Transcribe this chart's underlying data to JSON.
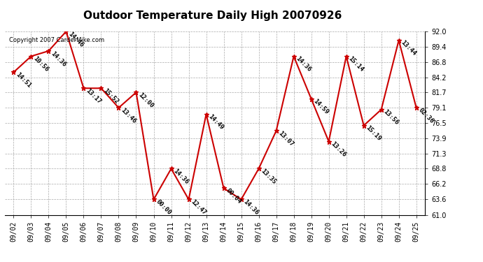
{
  "title": "Outdoor Temperature Daily High 20070926",
  "copyright": "Copyright 2007 CarderMike.com",
  "dates": [
    "09/02",
    "09/03",
    "09/04",
    "09/05",
    "09/06",
    "09/07",
    "09/08",
    "09/09",
    "09/10",
    "09/11",
    "09/12",
    "09/13",
    "09/14",
    "09/15",
    "09/16",
    "09/17",
    "09/18",
    "09/19",
    "09/20",
    "09/21",
    "09/22",
    "09/23",
    "09/24",
    "09/25"
  ],
  "values": [
    85.1,
    87.8,
    88.7,
    92.0,
    82.4,
    82.4,
    79.1,
    81.7,
    63.6,
    68.8,
    63.6,
    78.0,
    65.5,
    63.6,
    68.8,
    75.2,
    87.8,
    80.6,
    73.4,
    87.8,
    76.1,
    78.8,
    90.5,
    79.1
  ],
  "times": [
    "14:51",
    "10:56",
    "14:36",
    "14:46",
    "13:17",
    "15:52",
    "13:46",
    "12:00",
    "00:00",
    "14:36",
    "12:47",
    "14:49",
    "00:04",
    "14:36",
    "13:35",
    "13:07",
    "14:36",
    "14:59",
    "13:26",
    "15:14",
    "15:19",
    "13:56",
    "13:44",
    "02:36"
  ],
  "ylim": [
    61.0,
    92.0
  ],
  "yticks": [
    61.0,
    63.6,
    66.2,
    68.8,
    71.3,
    73.9,
    76.5,
    79.1,
    81.7,
    84.2,
    86.8,
    89.4,
    92.0
  ],
  "line_color": "#cc0000",
  "marker_color": "#cc0000",
  "background_color": "#ffffff",
  "grid_color": "#aaaaaa",
  "title_fontsize": 11,
  "label_fontsize": 6.5,
  "tick_fontsize": 7,
  "copyright_fontsize": 6
}
